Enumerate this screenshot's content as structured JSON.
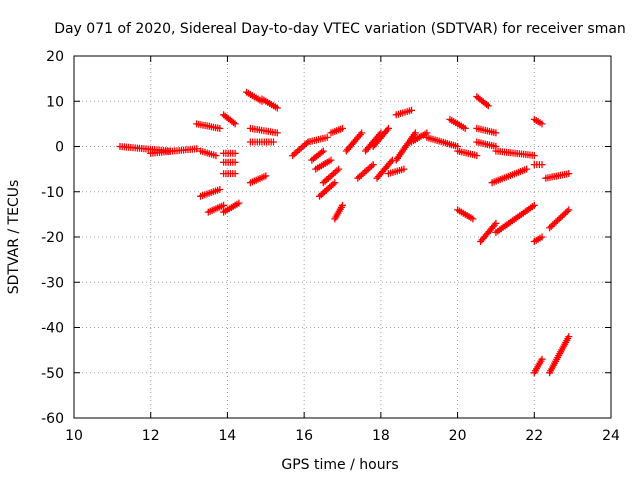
{
  "chart_data": {
    "type": "scatter",
    "title": "Day 071 of 2020, Sidereal Day-to-day VTEC variation (SDTVAR) for receiver sman",
    "xlabel": "GPS time / hours",
    "ylabel": "SDTVAR / TECUs",
    "xlim": [
      10,
      24
    ],
    "ylim": [
      -60,
      20
    ],
    "xticks": [
      "10",
      "12",
      "14",
      "16",
      "18",
      "20",
      "22",
      "24"
    ],
    "yticks": [
      "20",
      "10",
      "0",
      "-10",
      "-20",
      "-30",
      "-40",
      "-50",
      "-60"
    ],
    "grid": true,
    "marker": "+",
    "color": "#ff0000",
    "series": [
      {
        "name": "seg1",
        "x": [
          11.2,
          12.5
        ],
        "y": [
          0,
          -1
        ]
      },
      {
        "name": "seg2",
        "x": [
          12.0,
          13.2
        ],
        "y": [
          -1.5,
          -0.5
        ]
      },
      {
        "name": "seg3",
        "x": [
          13.2,
          13.8
        ],
        "y": [
          5,
          4
        ]
      },
      {
        "name": "seg4",
        "x": [
          13.3,
          13.7
        ],
        "y": [
          -1,
          -2
        ]
      },
      {
        "name": "seg5",
        "x": [
          13.3,
          13.8
        ],
        "y": [
          -11,
          -9.5
        ]
      },
      {
        "name": "seg6",
        "x": [
          13.5,
          13.9
        ],
        "y": [
          -14.5,
          -13
        ]
      },
      {
        "name": "seg7",
        "x": [
          13.9,
          14.2
        ],
        "y": [
          7,
          5
        ]
      },
      {
        "name": "seg8",
        "x": [
          13.9,
          14.2
        ],
        "y": [
          -1.5,
          -1.5
        ]
      },
      {
        "name": "seg9",
        "x": [
          13.9,
          14.2
        ],
        "y": [
          -3.5,
          -3.5
        ]
      },
      {
        "name": "seg10",
        "x": [
          13.9,
          14.2
        ],
        "y": [
          -6,
          -6
        ]
      },
      {
        "name": "seg11",
        "x": [
          13.9,
          14.3
        ],
        "y": [
          -14.5,
          -12.5
        ]
      },
      {
        "name": "seg12",
        "x": [
          14.5,
          14.9
        ],
        "y": [
          12,
          10
        ]
      },
      {
        "name": "seg13",
        "x": [
          14.9,
          15.3
        ],
        "y": [
          10.5,
          8.5
        ]
      },
      {
        "name": "seg14",
        "x": [
          14.6,
          15.3
        ],
        "y": [
          4,
          3
        ]
      },
      {
        "name": "seg15",
        "x": [
          14.6,
          15.2
        ],
        "y": [
          1,
          1
        ]
      },
      {
        "name": "seg16",
        "x": [
          14.6,
          15.0
        ],
        "y": [
          -8,
          -6.5
        ]
      },
      {
        "name": "seg17",
        "x": [
          15.7,
          16.1
        ],
        "y": [
          -2,
          1
        ]
      },
      {
        "name": "seg18",
        "x": [
          16.1,
          16.6
        ],
        "y": [
          1,
          2
        ]
      },
      {
        "name": "seg19",
        "x": [
          16.2,
          16.5
        ],
        "y": [
          -3,
          -1
        ]
      },
      {
        "name": "seg20",
        "x": [
          16.3,
          16.7
        ],
        "y": [
          -5,
          -3
        ]
      },
      {
        "name": "seg21",
        "x": [
          16.5,
          16.9
        ],
        "y": [
          -8,
          -5
        ]
      },
      {
        "name": "seg22",
        "x": [
          16.4,
          16.8
        ],
        "y": [
          -11,
          -8
        ]
      },
      {
        "name": "seg23",
        "x": [
          16.8,
          17.0
        ],
        "y": [
          -16,
          -13
        ]
      },
      {
        "name": "seg24",
        "x": [
          16.7,
          17.0
        ],
        "y": [
          3,
          4
        ]
      },
      {
        "name": "seg25",
        "x": [
          17.1,
          17.5
        ],
        "y": [
          -1,
          3
        ]
      },
      {
        "name": "seg26",
        "x": [
          17.4,
          17.8
        ],
        "y": [
          -7,
          -4
        ]
      },
      {
        "name": "seg27",
        "x": [
          17.6,
          18.0
        ],
        "y": [
          -1,
          3
        ]
      },
      {
        "name": "seg28",
        "x": [
          17.8,
          18.2
        ],
        "y": [
          0,
          4
        ]
      },
      {
        "name": "seg29",
        "x": [
          17.9,
          18.3
        ],
        "y": [
          -7,
          -3
        ]
      },
      {
        "name": "seg30",
        "x": [
          18.2,
          18.6
        ],
        "y": [
          -6,
          -5
        ]
      },
      {
        "name": "seg31",
        "x": [
          18.4,
          18.9
        ],
        "y": [
          -3,
          3
        ]
      },
      {
        "name": "seg32",
        "x": [
          18.8,
          19.2
        ],
        "y": [
          1,
          3
        ]
      },
      {
        "name": "seg33",
        "x": [
          18.4,
          18.8
        ],
        "y": [
          7,
          8
        ]
      },
      {
        "name": "seg34",
        "x": [
          19.2,
          20.0
        ],
        "y": [
          2,
          0
        ]
      },
      {
        "name": "seg35",
        "x": [
          19.8,
          20.2
        ],
        "y": [
          6,
          4
        ]
      },
      {
        "name": "seg36",
        "x": [
          20.0,
          20.5
        ],
        "y": [
          -1,
          -2
        ]
      },
      {
        "name": "seg37",
        "x": [
          20.5,
          20.8
        ],
        "y": [
          11,
          9
        ]
      },
      {
        "name": "seg38",
        "x": [
          20.5,
          21.0
        ],
        "y": [
          4,
          3
        ]
      },
      {
        "name": "seg39",
        "x": [
          20.5,
          21.0
        ],
        "y": [
          1,
          0
        ]
      },
      {
        "name": "seg40",
        "x": [
          21.0,
          22.0
        ],
        "y": [
          -1,
          -2
        ]
      },
      {
        "name": "seg41",
        "x": [
          20.9,
          21.8
        ],
        "y": [
          -8,
          -5
        ]
      },
      {
        "name": "seg42",
        "x": [
          20.0,
          20.4
        ],
        "y": [
          -14,
          -16
        ]
      },
      {
        "name": "seg43",
        "x": [
          20.6,
          21.0
        ],
        "y": [
          -21,
          -17
        ]
      },
      {
        "name": "seg44",
        "x": [
          21.0,
          22.0
        ],
        "y": [
          -19,
          -13
        ]
      },
      {
        "name": "seg45",
        "x": [
          22.0,
          22.2
        ],
        "y": [
          6,
          5
        ]
      },
      {
        "name": "seg46",
        "x": [
          22.0,
          22.2
        ],
        "y": [
          -4,
          -4
        ]
      },
      {
        "name": "seg47",
        "x": [
          22.3,
          22.9
        ],
        "y": [
          -7,
          -6
        ]
      },
      {
        "name": "seg48",
        "x": [
          22.0,
          22.2
        ],
        "y": [
          -21,
          -20
        ]
      },
      {
        "name": "seg49",
        "x": [
          22.4,
          22.9
        ],
        "y": [
          -18,
          -14
        ]
      },
      {
        "name": "seg50",
        "x": [
          22.0,
          22.2
        ],
        "y": [
          -50,
          -47
        ]
      },
      {
        "name": "seg51",
        "x": [
          22.4,
          22.9
        ],
        "y": [
          -50,
          -42
        ]
      }
    ]
  }
}
